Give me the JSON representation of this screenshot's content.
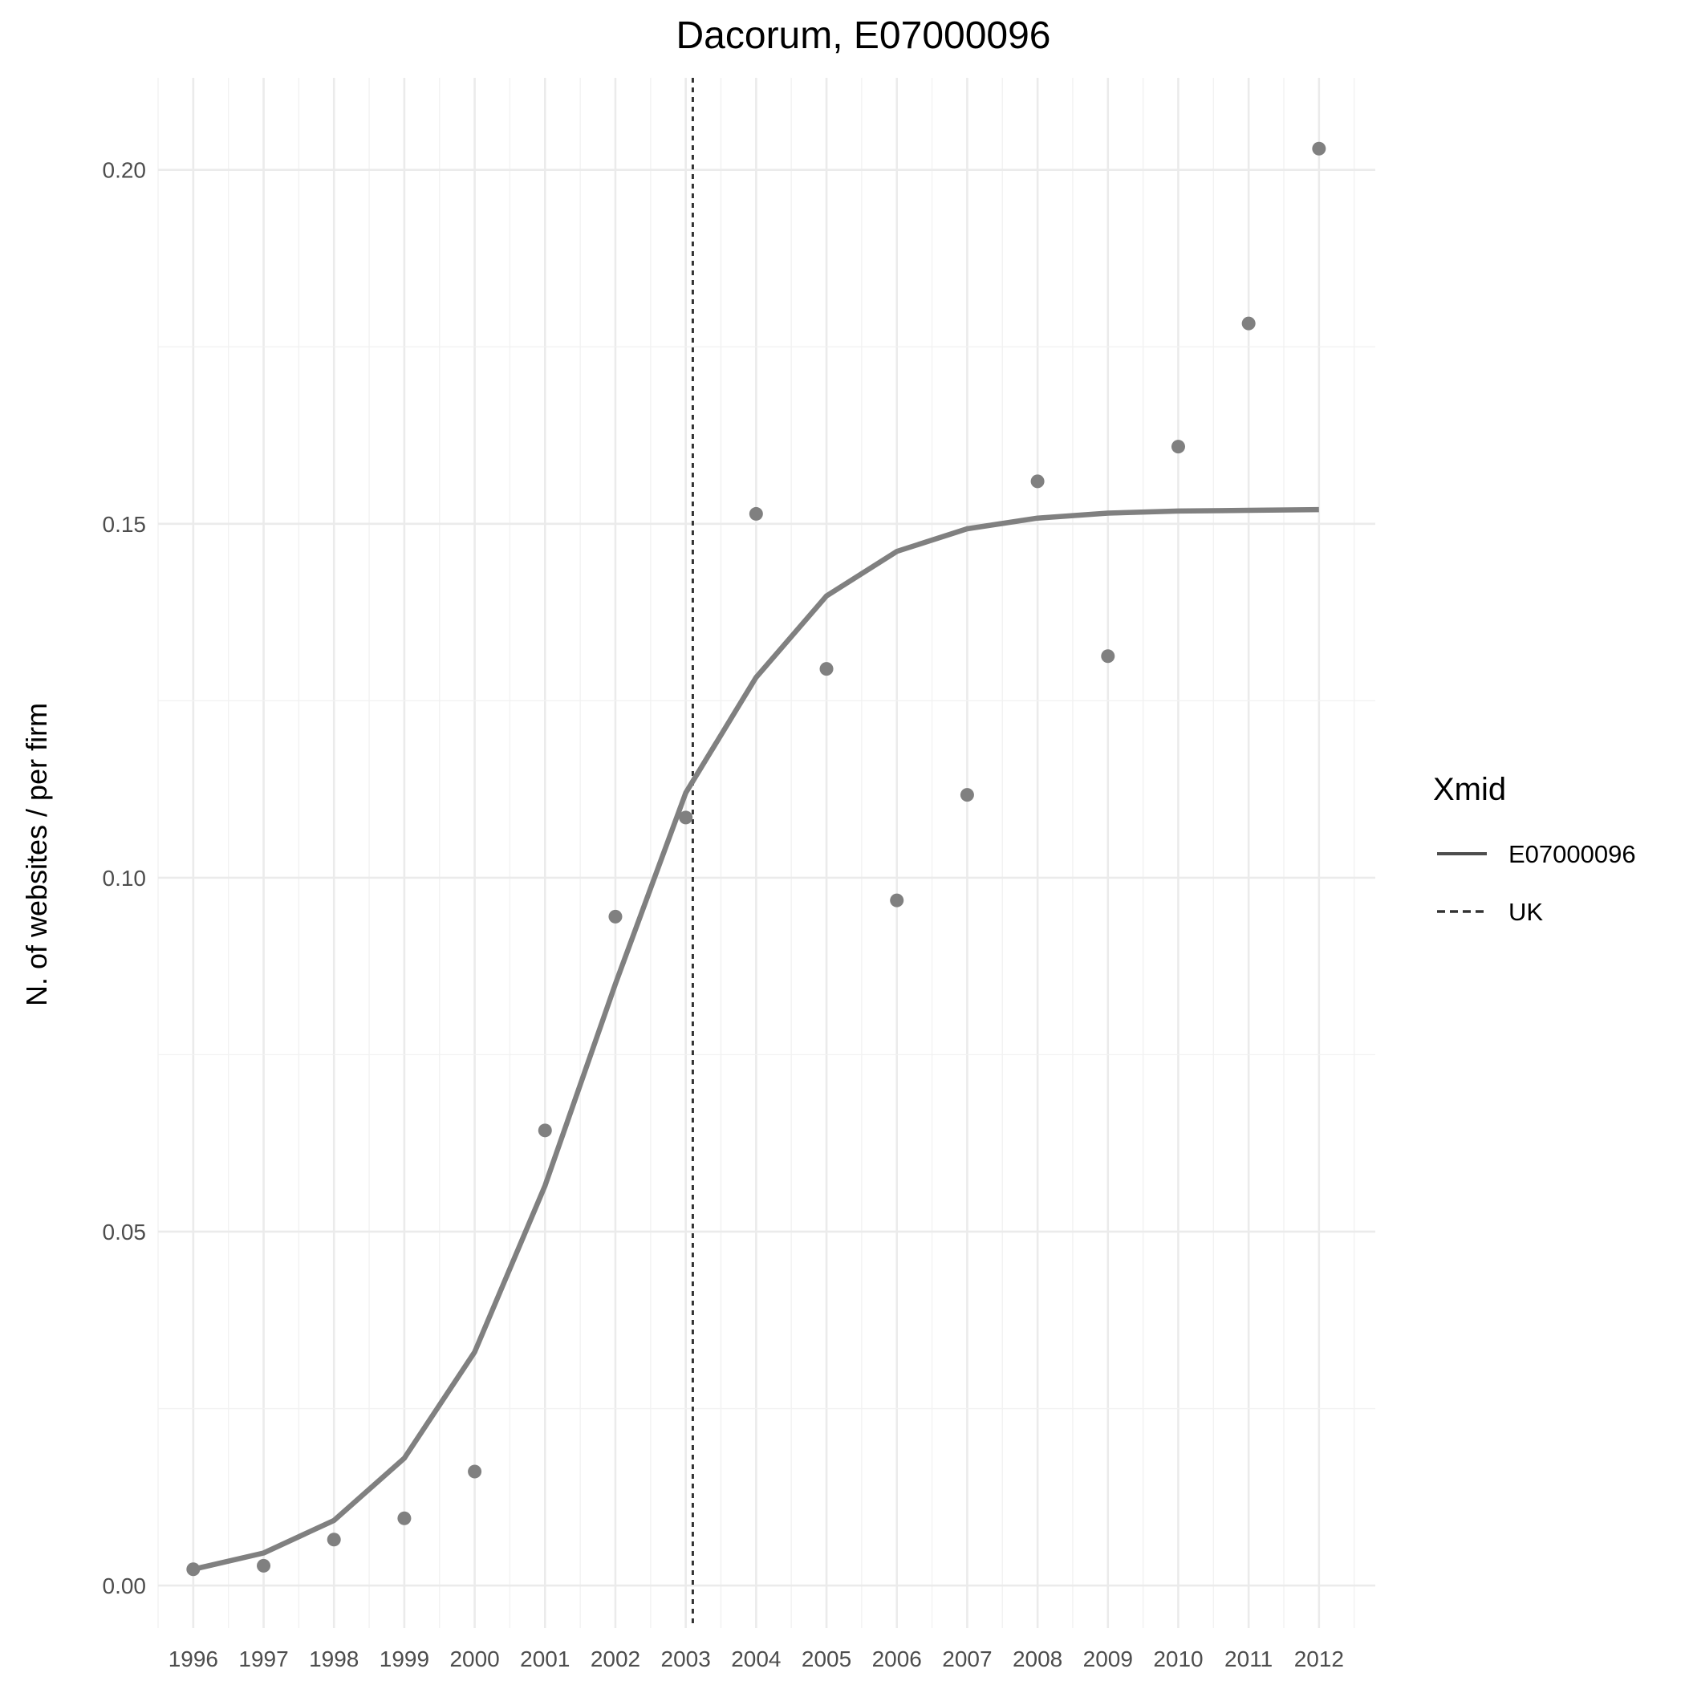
{
  "chart_data": {
    "type": "line",
    "title": "Dacorum, E07000096",
    "xlabel": "",
    "ylabel": "N. of websites / per firm",
    "x": [
      1996,
      1997,
      1998,
      1999,
      2000,
      2001,
      2002,
      2003,
      2004,
      2005,
      2006,
      2007,
      2008,
      2009,
      2010,
      2011,
      2012
    ],
    "x_tick_labels": [
      "1996",
      "1997",
      "1998",
      "1999",
      "2000",
      "2001",
      "2002",
      "2003",
      "2004",
      "2005",
      "2006",
      "2007",
      "2008",
      "2009",
      "2010",
      "2011",
      "2012"
    ],
    "y_ticks": [
      0.0,
      0.05,
      0.1,
      0.15,
      0.2
    ],
    "y_tick_labels": [
      "0.00",
      "0.05",
      "0.10",
      "0.15",
      "0.20"
    ],
    "xlim": [
      1995.5,
      2012.8
    ],
    "ylim": [
      -0.006,
      0.213
    ],
    "grid": true,
    "points": {
      "name": "observed",
      "color": "#808080",
      "values": [
        0.0023,
        0.0028,
        0.0065,
        0.0095,
        0.0161,
        0.0643,
        0.0945,
        0.1085,
        0.1514,
        0.1295,
        0.0968,
        0.1117,
        0.156,
        0.1313,
        0.1609,
        0.1783,
        0.203
      ]
    },
    "fit": {
      "name": "E07000096",
      "color": "#808080",
      "linestyle": "solid",
      "values": [
        0.0023,
        0.0046,
        0.0092,
        0.018,
        0.033,
        0.0565,
        0.085,
        0.112,
        0.1283,
        0.1398,
        0.1461,
        0.1493,
        0.1508,
        0.1515,
        0.1518,
        0.1519,
        0.152
      ]
    },
    "reference_line": {
      "name": "UK",
      "x": 2003.1,
      "color": "#333333",
      "linestyle": "dotted"
    },
    "legend": {
      "title": "Xmid",
      "placement": "right",
      "entries": [
        {
          "label": "E07000096",
          "linestyle": "solid",
          "color": "#4d4d4d"
        },
        {
          "label": "UK",
          "linestyle": "dashed",
          "color": "#333333"
        }
      ]
    }
  }
}
